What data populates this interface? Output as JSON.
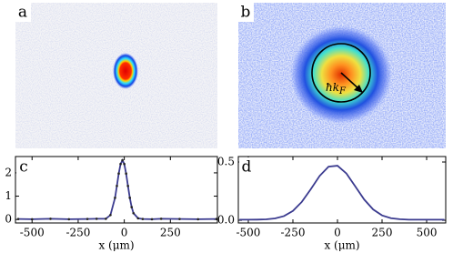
{
  "chart_data": [
    {
      "type": "image",
      "label": "a"
    },
    {
      "type": "image",
      "label": "b",
      "annotation": {
        "text": "ħk",
        "subscript": "F"
      }
    },
    {
      "type": "line",
      "label": "c",
      "x_label": "x (μm)",
      "color": "#3b3b8f",
      "markers": true,
      "x": [
        -575,
        -500,
        -400,
        -300,
        -200,
        -150,
        -100,
        -75,
        -50,
        -40,
        -30,
        -20,
        -10,
        0,
        10,
        20,
        30,
        40,
        50,
        75,
        100,
        150,
        200,
        300,
        400,
        500
      ],
      "values": [
        0.02,
        0.01,
        0.03,
        0.01,
        0.02,
        0.03,
        0.03,
        0.19,
        0.93,
        1.44,
        1.97,
        2.38,
        2.54,
        2.38,
        1.97,
        1.44,
        0.93,
        0.53,
        0.27,
        0.05,
        0.02,
        0.01,
        0.03,
        0.02,
        0.01,
        0.02
      ],
      "xlim": [
        -590,
        505
      ],
      "ylim": [
        -0.15,
        2.7
      ],
      "xticks": [
        -500,
        -250,
        0,
        250
      ],
      "yticks": [
        0,
        1,
        2
      ]
    },
    {
      "type": "line",
      "label": "d",
      "x_label": "x (μm)",
      "color": "#3b3b8f",
      "markers": false,
      "x": [
        -550,
        -500,
        -450,
        -400,
        -350,
        -300,
        -250,
        -200,
        -150,
        -100,
        -50,
        0,
        50,
        100,
        150,
        200,
        250,
        300,
        350,
        400,
        450,
        500,
        550,
        600
      ],
      "values": [
        0.005,
        0.005,
        0.006,
        0.008,
        0.016,
        0.036,
        0.08,
        0.158,
        0.266,
        0.381,
        0.46,
        0.468,
        0.402,
        0.29,
        0.178,
        0.093,
        0.042,
        0.018,
        0.009,
        0.005,
        0.005,
        0.005,
        0.005,
        0.005
      ],
      "xlim": [
        -556,
        607
      ],
      "ylim": [
        -0.023,
        0.547
      ],
      "xticks": [
        -500,
        -250,
        0,
        250,
        500
      ],
      "yticks": [
        {
          "value": 0,
          "label": "0.0"
        },
        0.5
      ]
    }
  ]
}
